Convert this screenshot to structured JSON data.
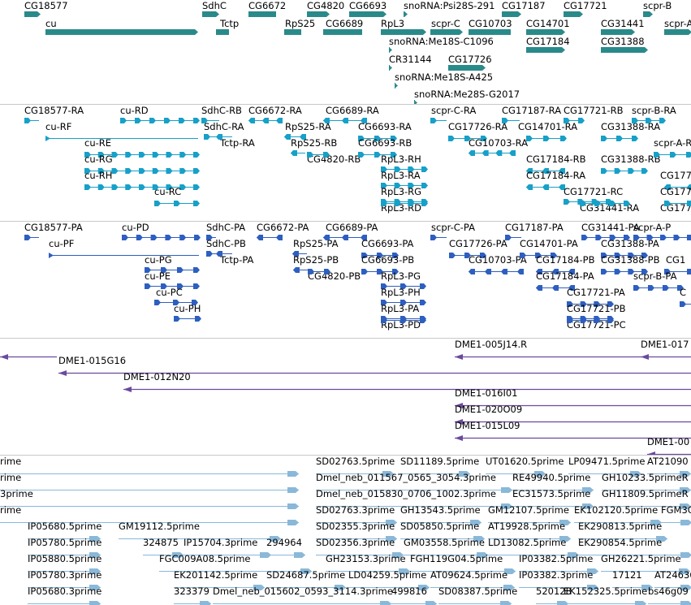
{
  "colors": {
    "genes": "#2a8a8a",
    "transcripts": "#17a0c8",
    "proteins": "#2e5fc0",
    "bacs": "#6a4a9e",
    "ests": "#8ab8d8",
    "separator": "#c8c8c8"
  },
  "tracks": [
    {
      "id": "genes",
      "features": [
        {
          "label": "CG18577",
          "strand": "+"
        },
        {
          "label": "cu",
          "strand": "+"
        },
        {
          "label": "SdhC",
          "strand": "+"
        },
        {
          "label": "Tctp",
          "strand": "-"
        },
        {
          "label": "CG6672",
          "strand": "-"
        },
        {
          "label": "CG4820",
          "strand": "+"
        },
        {
          "label": "RpS25",
          "strand": "-"
        },
        {
          "label": "CG6689",
          "strand": "-"
        },
        {
          "label": "CG6693",
          "strand": "+"
        },
        {
          "label": "RpL3",
          "strand": "+"
        },
        {
          "label": "snoRNA:Psi28S-291",
          "strand": "+"
        },
        {
          "label": "scpr-C",
          "strand": "+"
        },
        {
          "label": "CG10703",
          "strand": "-"
        },
        {
          "label": "CG17187",
          "strand": "+"
        },
        {
          "label": "CG14701",
          "strand": "+"
        },
        {
          "label": "CG17721",
          "strand": "+"
        },
        {
          "label": "CG17184",
          "strand": "+"
        },
        {
          "label": "CG31441",
          "strand": "+"
        },
        {
          "label": "CG31388",
          "strand": "+"
        },
        {
          "label": "scpr-B",
          "strand": "+"
        },
        {
          "label": "scpr-A",
          "strand": "+"
        },
        {
          "label": "snoRNA:Me18S-C1096",
          "strand": "+"
        },
        {
          "label": "CR31144",
          "strand": "+"
        },
        {
          "label": "CG17726",
          "strand": "+"
        },
        {
          "label": "snoRNA:Me18S-A425",
          "strand": "+"
        },
        {
          "label": "snoRNA:Me28S-G2017",
          "strand": "+"
        }
      ]
    },
    {
      "id": "transcripts",
      "features": [
        {
          "label": "CG18577-RA",
          "strand": "+"
        },
        {
          "label": "cu-RD",
          "strand": "+"
        },
        {
          "label": "cu-RF",
          "strand": "+"
        },
        {
          "label": "cu-RE",
          "strand": "+"
        },
        {
          "label": "cu-RG",
          "strand": "+"
        },
        {
          "label": "cu-RH",
          "strand": "+"
        },
        {
          "label": "cu-RC",
          "strand": "+"
        },
        {
          "label": "SdhC-RB",
          "strand": "+"
        },
        {
          "label": "SdhC-RA",
          "strand": "+"
        },
        {
          "label": "Tctp-RA",
          "strand": "-"
        },
        {
          "label": "CG6672-RA",
          "strand": "-"
        },
        {
          "label": "RpS25-RA",
          "strand": "-"
        },
        {
          "label": "RpS25-RB",
          "strand": "-"
        },
        {
          "label": "CG4820-RB",
          "strand": "+"
        },
        {
          "label": "CG6689-RA",
          "strand": "-"
        },
        {
          "label": "CG6693-RA",
          "strand": "+"
        },
        {
          "label": "CG6693-RB",
          "strand": "+"
        },
        {
          "label": "RpL3-RH",
          "strand": "+"
        },
        {
          "label": "RpL3-RA",
          "strand": "+"
        },
        {
          "label": "RpL3-RG",
          "strand": "+"
        },
        {
          "label": "RpL3-RD",
          "strand": "+"
        },
        {
          "label": "scpr-C-RA",
          "strand": "+"
        },
        {
          "label": "CG17726-RA",
          "strand": "+"
        },
        {
          "label": "CG10703-RA",
          "strand": "-"
        },
        {
          "label": "CG17187-RA",
          "strand": "+"
        },
        {
          "label": "CG14701-RA",
          "strand": "+"
        },
        {
          "label": "CG17721-RB",
          "strand": "+"
        },
        {
          "label": "CG17184-RB",
          "strand": "-"
        },
        {
          "label": "CG17184-RA",
          "strand": "-"
        },
        {
          "label": "CG17721-RC",
          "strand": "+"
        },
        {
          "label": "CG31441-RA",
          "strand": "+"
        },
        {
          "label": "CG31388-RA",
          "strand": "+"
        },
        {
          "label": "CG31388-RB",
          "strand": "+"
        },
        {
          "label": "scpr-B-RA",
          "strand": "+"
        },
        {
          "label": "scpr-A-RB",
          "strand": "+"
        },
        {
          "label": "CG177",
          "strand": "-"
        },
        {
          "label": "CG177",
          "strand": "+"
        },
        {
          "label": "CG177",
          "strand": "+"
        }
      ]
    },
    {
      "id": "proteins",
      "features": [
        {
          "label": "CG18577-PA",
          "strand": "+"
        },
        {
          "label": "cu-PD",
          "strand": "+"
        },
        {
          "label": "cu-PF",
          "strand": "+"
        },
        {
          "label": "cu-PG",
          "strand": "+"
        },
        {
          "label": "cu-PE",
          "strand": "+"
        },
        {
          "label": "cu-PC",
          "strand": "+"
        },
        {
          "label": "cu-PH",
          "strand": "+"
        },
        {
          "label": "SdhC-PA",
          "strand": "+"
        },
        {
          "label": "SdhC-PB",
          "strand": "+"
        },
        {
          "label": "Tctp-PA",
          "strand": "-"
        },
        {
          "label": "CG6672-PA",
          "strand": "-"
        },
        {
          "label": "RpS25-PA",
          "strand": "-"
        },
        {
          "label": "RpS25-PB",
          "strand": "-"
        },
        {
          "label": "CG4820-PB",
          "strand": "+"
        },
        {
          "label": "CG6689-PA",
          "strand": "-"
        },
        {
          "label": "CG6693-PA",
          "strand": "+"
        },
        {
          "label": "CG6693-PB",
          "strand": "+"
        },
        {
          "label": "RpL3-PG",
          "strand": "+"
        },
        {
          "label": "RpL3-PH",
          "strand": "+"
        },
        {
          "label": "RpL3-PA",
          "strand": "+"
        },
        {
          "label": "RpL3-PD",
          "strand": "+"
        },
        {
          "label": "scpr-C-PA",
          "strand": "+"
        },
        {
          "label": "CG17726-PA",
          "strand": "+"
        },
        {
          "label": "CG10703-PA",
          "strand": "-"
        },
        {
          "label": "CG17187-PA",
          "strand": "+"
        },
        {
          "label": "CG14701-PA",
          "strand": "+"
        },
        {
          "label": "CG17184-PB",
          "strand": "-"
        },
        {
          "label": "CG17184-PA",
          "strand": "-"
        },
        {
          "label": "CG31441-PA",
          "strand": "+"
        },
        {
          "label": "CG31388-PA",
          "strand": "+"
        },
        {
          "label": "CG31388-PB",
          "strand": "+"
        },
        {
          "label": "CG1",
          "strand": "+"
        },
        {
          "label": "scpr-A-P",
          "strand": "+"
        },
        {
          "label": "scpr-B-PA",
          "strand": "+"
        },
        {
          "label": "CG17721-PA",
          "strand": "+"
        },
        {
          "label": "CG17721-PB",
          "strand": "+"
        },
        {
          "label": "CG17721-PC",
          "strand": "+"
        },
        {
          "label": "C",
          "strand": "+"
        }
      ]
    },
    {
      "id": "bacs",
      "features": [
        {
          "label": "",
          "strand": "-"
        },
        {
          "label": "DME1-015G16",
          "strand": "-"
        },
        {
          "label": "DME1-012N20",
          "strand": "-"
        },
        {
          "label": "DME1-005J14.R",
          "strand": "-"
        },
        {
          "label": "DME1-017",
          "strand": "-"
        },
        {
          "label": "DME1-016I01",
          "strand": "-"
        },
        {
          "label": "DME1-020O09",
          "strand": "-"
        },
        {
          "label": "DME1-015L09",
          "strand": "-"
        },
        {
          "label": "DME1-00",
          "strand": "-"
        }
      ]
    },
    {
      "id": "ests",
      "features": [
        {
          "label": "rime",
          "strand": "+"
        },
        {
          "label": "rime",
          "strand": "+"
        },
        {
          "label": "3prime",
          "strand": "+"
        },
        {
          "label": "rime",
          "strand": "+"
        },
        {
          "label": "SD02763.5prime",
          "strand": "+"
        },
        {
          "label": "SD11189.5prime",
          "strand": "+"
        },
        {
          "label": "UT01620.5prime",
          "strand": "+"
        },
        {
          "label": "LP09471.5prime",
          "strand": "+"
        },
        {
          "label": "AT21090",
          "strand": "+"
        },
        {
          "label": "Dmel_neb_011567_0565_3054.3prime",
          "strand": "+"
        },
        {
          "label": "RE49940.5prime",
          "strand": "+"
        },
        {
          "label": "GH10233.5primeR",
          "strand": "+"
        },
        {
          "label": "Dmel_neb_015830_0706_1002.3prime",
          "strand": "+"
        },
        {
          "label": "EC31573.5prime",
          "strand": "+"
        },
        {
          "label": "GH11809.5primeR",
          "strand": "+"
        },
        {
          "label": "SD02763.3prime",
          "strand": "+"
        },
        {
          "label": "GH13543.5prime",
          "strand": "+"
        },
        {
          "label": "GM12107.5prime",
          "strand": "+"
        },
        {
          "label": "EK102120.5prime",
          "strand": "+"
        },
        {
          "label": "FGM3C",
          "strand": "+"
        },
        {
          "label": "IP05680.5prime",
          "strand": "+"
        },
        {
          "label": "GM19112.5prime",
          "strand": "+"
        },
        {
          "label": "SD02355.3prime",
          "strand": "+"
        },
        {
          "label": "SD05850.5prime",
          "strand": "+"
        },
        {
          "label": "AT19928.5prime",
          "strand": "+"
        },
        {
          "label": "EK290813.5prime",
          "strand": "+"
        },
        {
          "label": "IP05780.5prime",
          "strand": "+"
        },
        {
          "label": "324875",
          "strand": "+"
        },
        {
          "label": "IP15704.3prime",
          "strand": "+"
        },
        {
          "label": "294964",
          "strand": "+"
        },
        {
          "label": "SD02356.3prime",
          "strand": "+"
        },
        {
          "label": "GM03558.5prime",
          "strand": "+"
        },
        {
          "label": "LD13082.5prime",
          "strand": "+"
        },
        {
          "label": "EK290854.5prime",
          "strand": "+"
        },
        {
          "label": "IP05880.5prime",
          "strand": "+"
        },
        {
          "label": "FGC009A08.5prime",
          "strand": "+"
        },
        {
          "label": "GH23153.3prime",
          "strand": "+"
        },
        {
          "label": "FGH119G04.5prime",
          "strand": "+"
        },
        {
          "label": "IP03382.5prime",
          "strand": "+"
        },
        {
          "label": "GH26221.5prime",
          "strand": "+"
        },
        {
          "label": "IP05780.3prime",
          "strand": "+"
        },
        {
          "label": "EK201142.5prime",
          "strand": "+"
        },
        {
          "label": "SD24687.5prime",
          "strand": "+"
        },
        {
          "label": "LD04259.5prime",
          "strand": "+"
        },
        {
          "label": "AT09624.5prime",
          "strand": "+"
        },
        {
          "label": "IP03382.3prime",
          "strand": "+"
        },
        {
          "label": "17121",
          "strand": "+"
        },
        {
          "label": "AT24636.5p",
          "strand": "+"
        },
        {
          "label": "IP05680.3prime",
          "strand": "+"
        },
        {
          "label": "323379",
          "strand": "+"
        },
        {
          "label": "Dmel_neb_015602_0593_3114.3prime",
          "strand": "+"
        },
        {
          "label": "499816",
          "strand": "+"
        },
        {
          "label": "SD08387.5prime",
          "strand": "+"
        },
        {
          "label": "520128",
          "strand": "+"
        },
        {
          "label": "EK152325.5prime",
          "strand": "+"
        },
        {
          "label": "bs46g09",
          "strand": "+"
        }
      ]
    }
  ]
}
